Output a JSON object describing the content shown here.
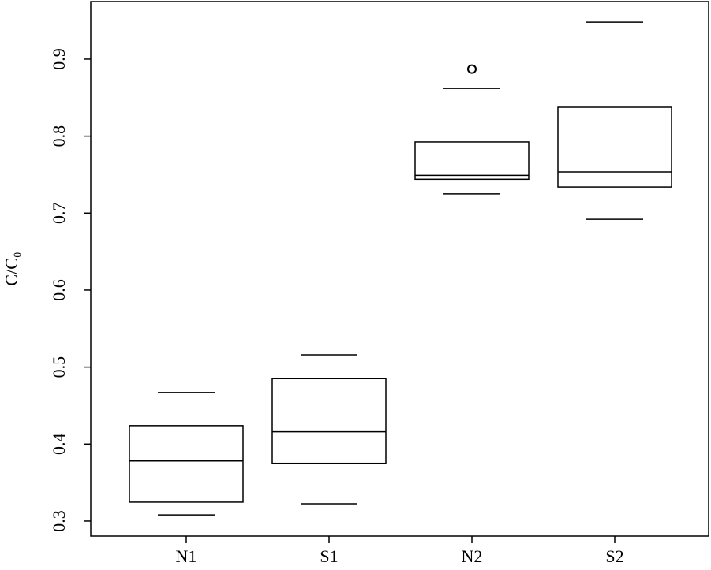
{
  "chart_data": {
    "type": "box",
    "y_label": "C/C₀",
    "categories": [
      "N1",
      "S1",
      "N2",
      "S2"
    ],
    "boxes": [
      {
        "whislo": 0.308,
        "q1": 0.3246,
        "med": 0.378,
        "q3": 0.424,
        "whishi": 0.467,
        "fliers": []
      },
      {
        "whislo": 0.3225,
        "q1": 0.375,
        "med": 0.416,
        "q3": 0.485,
        "whishi": 0.516,
        "fliers": []
      },
      {
        "whislo": 0.725,
        "q1": 0.744,
        "med": 0.749,
        "q3": 0.7925,
        "whishi": 0.862,
        "fliers": [
          0.887
        ]
      },
      {
        "whislo": 0.692,
        "q1": 0.734,
        "med": 0.7535,
        "q3": 0.8375,
        "whishi": 0.948,
        "fliers": []
      }
    ],
    "ylim": [
      0.2805,
      0.9747
    ],
    "yticks": [
      0.3,
      0.4,
      0.5,
      0.6,
      0.7,
      0.8,
      0.9
    ],
    "color": "#000000"
  }
}
